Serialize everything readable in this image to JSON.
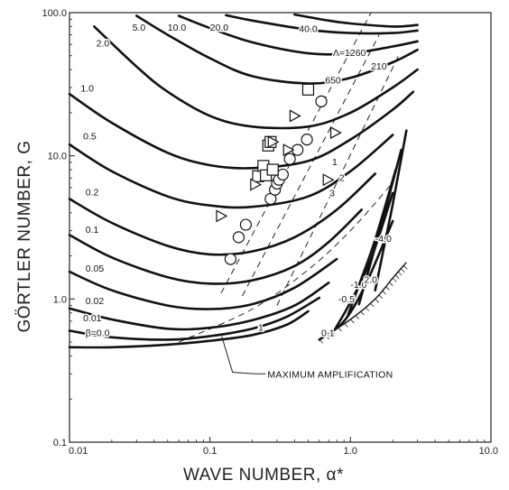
{
  "chart_data": {
    "type": "line",
    "title": "",
    "xlabel": "WAVE NUMBER, α*",
    "ylabel": "GÖRTLER NUMBER, G",
    "x_scale": "log",
    "y_scale": "log",
    "xlim": [
      0.01,
      10.0
    ],
    "ylim": [
      0.1,
      100.0
    ],
    "x_tick_labels": [
      "0.01",
      "0.1",
      "1.0",
      "10.0"
    ],
    "y_tick_labels": [
      "0.1",
      "1.0",
      "10.0",
      "100.0"
    ],
    "x_ticks": [
      0.01,
      0.1,
      1.0,
      10.0
    ],
    "y_ticks": [
      0.1,
      1.0,
      10.0,
      100.0
    ],
    "grid": false,
    "series": [
      {
        "name": "β=0.0",
        "x": [
          0.01,
          0.02,
          0.05,
          0.1,
          0.2,
          0.35,
          0.5
        ],
        "y": [
          0.46,
          0.46,
          0.48,
          0.51,
          0.56,
          0.66,
          0.82
        ]
      },
      {
        "name": "0.01",
        "x": [
          0.01,
          0.02,
          0.05,
          0.1,
          0.2,
          0.35,
          0.6
        ],
        "y": [
          0.6,
          0.54,
          0.52,
          0.55,
          0.62,
          0.75,
          1.02
        ]
      },
      {
        "name": "0.02",
        "x": [
          0.01,
          0.02,
          0.05,
          0.1,
          0.2,
          0.4,
          0.7
        ],
        "y": [
          0.86,
          0.72,
          0.62,
          0.63,
          0.71,
          0.9,
          1.3
        ]
      },
      {
        "name": "0.05",
        "x": [
          0.01,
          0.02,
          0.05,
          0.1,
          0.2,
          0.4,
          0.8
        ],
        "y": [
          1.55,
          1.15,
          0.9,
          0.85,
          0.92,
          1.2,
          1.9
        ]
      },
      {
        "name": "0.1",
        "x": [
          0.01,
          0.02,
          0.05,
          0.1,
          0.2,
          0.4,
          0.7,
          1.2
        ],
        "y": [
          2.8,
          1.95,
          1.42,
          1.28,
          1.35,
          1.7,
          2.5,
          4.2
        ]
      },
      {
        "name": "0.2",
        "x": [
          0.01,
          0.02,
          0.05,
          0.1,
          0.2,
          0.4,
          0.8,
          1.5
        ],
        "y": [
          5.0,
          3.4,
          2.35,
          2.05,
          2.15,
          2.7,
          4.2,
          7.5
        ]
      },
      {
        "name": "0.5",
        "x": [
          0.01,
          0.02,
          0.05,
          0.1,
          0.2,
          0.5,
          1.0,
          2.0
        ],
        "y": [
          12.0,
          7.8,
          5.2,
          4.5,
          4.4,
          5.2,
          7.8,
          14.0
        ]
      },
      {
        "name": "1.0",
        "x": [
          0.01,
          0.02,
          0.05,
          0.1,
          0.2,
          0.5,
          1.0,
          2.0,
          2.8
        ],
        "y": [
          27.0,
          17.0,
          10.5,
          8.6,
          8.2,
          9.2,
          13.0,
          21.0,
          28.0
        ]
      },
      {
        "name": "2.0",
        "x": [
          0.015,
          0.03,
          0.05,
          0.1,
          0.2,
          0.5,
          1.0,
          2.0,
          3.0
        ],
        "y": [
          80.0,
          42.0,
          28.0,
          19.0,
          16.0,
          16.0,
          20.0,
          30.0,
          40.0
        ]
      },
      {
        "name": "5.0",
        "x": [
          0.03,
          0.05,
          0.1,
          0.2,
          0.5,
          1.0,
          2.0,
          3.0
        ],
        "y": [
          95.0,
          70.0,
          48.0,
          36.0,
          32.0,
          35.0,
          45.0,
          55.0
        ]
      },
      {
        "name": "10.0",
        "x": [
          0.06,
          0.1,
          0.2,
          0.5,
          1.0,
          2.0,
          3.0
        ],
        "y": [
          95.0,
          78.0,
          62.0,
          52.0,
          52.0,
          58.0,
          63.0
        ]
      },
      {
        "name": "20.0",
        "x": [
          0.13,
          0.2,
          0.5,
          1.0,
          2.0,
          3.0
        ],
        "y": [
          96.0,
          88.0,
          76.0,
          72.0,
          72.0,
          75.0
        ]
      },
      {
        "name": "40.0",
        "x": [
          0.4,
          0.7,
          1.0,
          2.0,
          3.0
        ],
        "y": [
          97.0,
          88.0,
          84.0,
          80.0,
          82.0
        ]
      }
    ],
    "lower_branches": [
      {
        "name": "0.1",
        "x": [
          0.6,
          0.9,
          1.3,
          2.0
        ],
        "y": [
          0.52,
          0.7,
          1.3,
          3.5
        ]
      },
      {
        "name": "-0.5",
        "x": [
          0.78,
          1.0,
          1.4,
          2.0
        ],
        "y": [
          0.62,
          0.95,
          1.9,
          5.5
        ]
      },
      {
        "name": "-1.0",
        "x": [
          0.95,
          1.15,
          1.5,
          2.1
        ],
        "y": [
          0.75,
          1.25,
          2.6,
          8.0
        ]
      },
      {
        "name": "-2.0",
        "x": [
          1.15,
          1.35,
          1.7,
          2.3
        ],
        "y": [
          0.92,
          1.6,
          3.6,
          11.0
        ]
      },
      {
        "name": "-4.0",
        "x": [
          1.5,
          1.7,
          2.0,
          2.5
        ],
        "y": [
          1.15,
          2.1,
          4.6,
          15.0
        ]
      }
    ],
    "boundary": {
      "x": [
        0.6,
        1.0,
        1.5,
        2.0,
        2.5
      ],
      "y": [
        0.52,
        0.72,
        1.0,
        1.4,
        1.8
      ]
    },
    "max_amplification": {
      "x": [
        0.06,
        0.2,
        0.5,
        1.0,
        2.0
      ],
      "y": [
        0.5,
        0.85,
        1.6,
        3.0,
        6.5
      ]
    },
    "dashed_lines": [
      {
        "name": "Λ=1260",
        "x": [
          0.12,
          1.4
        ],
        "y": [
          1.1,
          100.0
        ]
      },
      {
        "name": "650",
        "x": [
          0.17,
          1.6
        ],
        "y": [
          1.05,
          70.0
        ]
      },
      {
        "name": "210",
        "x": [
          0.3,
          2.2
        ],
        "y": [
          0.9,
          50.0
        ]
      }
    ],
    "scatter": [
      {
        "marker": "circle",
        "x": [
          0.14,
          0.16,
          0.18,
          0.27,
          0.29,
          0.3,
          0.31,
          0.33,
          0.37,
          0.42,
          0.49,
          0.62
        ],
        "y": [
          1.9,
          2.7,
          3.3,
          5.0,
          5.8,
          6.4,
          6.8,
          7.4,
          9.5,
          11.0,
          13.0,
          24.0
        ]
      },
      {
        "marker": "square",
        "x": [
          0.22,
          0.24,
          0.25,
          0.26,
          0.27,
          0.28,
          0.5
        ],
        "y": [
          7.2,
          8.5,
          7.3,
          11.8,
          12.5,
          8.0,
          29.0
        ]
      },
      {
        "marker": "triangle",
        "x": [
          0.12,
          0.21,
          0.28,
          0.36,
          0.4,
          0.69,
          0.78
        ],
        "y": [
          3.8,
          6.3,
          12.5,
          11.0,
          19.0,
          6.8,
          14.5
        ]
      }
    ],
    "curve_labels": [
      {
        "text": "β=0.0",
        "x": 0.013,
        "y": 0.55
      },
      {
        "text": "0.01",
        "x": 0.0125,
        "y": 0.7
      },
      {
        "text": "0.02",
        "x": 0.013,
        "y": 0.92
      },
      {
        "text": "0.05",
        "x": 0.013,
        "y": 1.55
      },
      {
        "text": "0.1",
        "x": 0.013,
        "y": 2.9
      },
      {
        "text": "0.2",
        "x": 0.013,
        "y": 5.3
      },
      {
        "text": "0.5",
        "x": 0.0125,
        "y": 13.0
      },
      {
        "text": "1.0",
        "x": 0.012,
        "y": 28.0
      },
      {
        "text": "2.0",
        "x": 0.0155,
        "y": 58.0
      },
      {
        "text": "5.0",
        "x": 0.028,
        "y": 75.0
      },
      {
        "text": "10.0",
        "x": 0.05,
        "y": 75.0
      },
      {
        "text": "20.0",
        "x": 0.1,
        "y": 75.0
      },
      {
        "text": "40.0",
        "x": 0.43,
        "y": 73.0
      },
      {
        "text": "Λ=1260",
        "x": 0.75,
        "y": 50.0
      },
      {
        "text": "650",
        "x": 0.66,
        "y": 32.0
      },
      {
        "text": "210",
        "x": 1.4,
        "y": 40.0
      },
      {
        "text": "1",
        "x": 0.74,
        "y": 8.6
      },
      {
        "text": "2",
        "x": 0.83,
        "y": 6.7
      },
      {
        "text": "3",
        "x": 0.71,
        "y": 5.2
      },
      {
        "text": "0.1",
        "x": 0.62,
        "y": 0.55
      },
      {
        "text": "-0.5",
        "x": 0.82,
        "y": 0.95
      },
      {
        "text": "-1.0",
        "x": 1.0,
        "y": 1.2
      },
      {
        "text": "2.0",
        "x": 1.25,
        "y": 1.3
      },
      {
        "text": "-4.0",
        "x": 1.5,
        "y": 2.5
      },
      {
        "text": "1",
        "x": 0.22,
        "y": 0.6
      }
    ],
    "annotation": {
      "text": "MAXIMUM AMPLIFICATION"
    }
  }
}
